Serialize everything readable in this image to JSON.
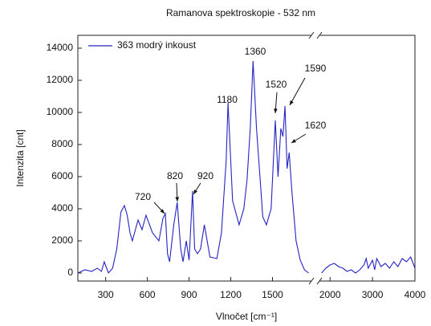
{
  "chart_data": {
    "type": "line",
    "title": "Ramanova spektroskopie - 532 nm",
    "x_label": "Vlnočet [cm⁻¹]",
    "y_label": "Intenzita [cnt]",
    "legend": "upper left",
    "x_segments": [
      {
        "xlim": [
          100,
          1780
        ],
        "xticks": [
          300,
          600,
          900,
          1200,
          1500
        ]
      },
      {
        "xlim": [
          1750,
          4000
        ],
        "xticks": [
          2000,
          3000,
          4000
        ]
      }
    ],
    "ylim": [
      -500,
      14800
    ],
    "yticks": [
      0,
      2000,
      4000,
      6000,
      8000,
      10000,
      12000,
      14000
    ],
    "annotations": [
      "720",
      "820",
      "920",
      "1180",
      "1360",
      "1520",
      "1590",
      "1620"
    ],
    "series": [
      {
        "name": "363 modrý inkoust",
        "color": "#2424c4",
        "x": [
          100,
          150,
          200,
          240,
          270,
          290,
          320,
          350,
          380,
          410,
          435,
          455,
          475,
          492,
          533,
          562,
          590,
          637,
          683,
          712,
          729,
          745,
          760,
          790,
          815,
          840,
          856,
          880,
          900,
          925,
          940,
          960,
          983,
          1010,
          1050,
          1100,
          1133,
          1167,
          1180,
          1213,
          1260,
          1294,
          1317,
          1340,
          1360,
          1385,
          1410,
          1430,
          1456,
          1490,
          1520,
          1540,
          1560,
          1575,
          1590,
          1605,
          1620,
          1640,
          1670,
          1700,
          1730,
          1760,
          1800,
          1900,
          2000,
          2100,
          2200,
          2300,
          2400,
          2500,
          2600,
          2700,
          2800,
          2850,
          2900,
          3000,
          3050,
          3100,
          3200,
          3300,
          3400,
          3500,
          3600,
          3700,
          3800,
          3900,
          4000
        ],
        "values": [
          0,
          200,
          100,
          300,
          100,
          700,
          0,
          300,
          1500,
          3800,
          4200,
          3600,
          2500,
          2000,
          3300,
          2700,
          3600,
          2500,
          2000,
          3400,
          3700,
          1200,
          700,
          3000,
          4400,
          1500,
          700,
          2000,
          800,
          5100,
          1500,
          1200,
          1500,
          3000,
          1000,
          900,
          2500,
          7000,
          10600,
          4500,
          3000,
          4000,
          5800,
          9000,
          13200,
          9000,
          6000,
          3500,
          3000,
          4000,
          9500,
          6000,
          9000,
          8500,
          10400,
          6500,
          7500,
          5000,
          2000,
          800,
          200,
          0,
          0,
          300,
          500,
          600,
          400,
          300,
          100,
          200,
          0,
          200,
          500,
          900,
          300,
          800,
          200,
          900,
          400,
          600,
          300,
          700,
          400,
          900,
          700,
          1000,
          300
        ]
      }
    ]
  }
}
